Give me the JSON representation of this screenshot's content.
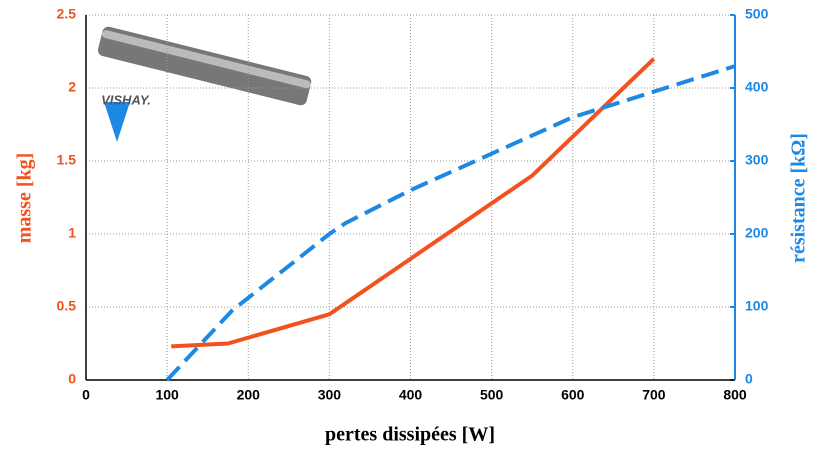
{
  "chart_data": {
    "type": "line",
    "xlabel": "pertes dissipées [W]",
    "ylabel": "masse [kg]",
    "y2label": "résistance [kΩ]",
    "logo_text": "VISHAY.",
    "xlim": [
      0,
      800
    ],
    "xticks": [
      0,
      100,
      200,
      300,
      400,
      500,
      600,
      700,
      800
    ],
    "ylim": [
      0,
      2.5
    ],
    "yticks": [
      0,
      0.5,
      1,
      1.5,
      2,
      2.5
    ],
    "y2lim": [
      0,
      500
    ],
    "y2ticks": [
      0,
      100,
      200,
      300,
      400,
      500
    ],
    "grid": true,
    "series": [
      {
        "name": "masse",
        "color": "#f4511e",
        "dash": false,
        "x": [
          105,
          175,
          300,
          550,
          700
        ],
        "values": [
          0.23,
          0.25,
          0.45,
          1.4,
          2.2
        ]
      },
      {
        "name": "résistance",
        "color": "#1e88e5",
        "dash": true,
        "axis": "y2",
        "x": [
          100,
          180,
          300,
          320,
          400,
          500,
          600,
          700,
          800
        ],
        "values": [
          0,
          95,
          200,
          215,
          260,
          310,
          360,
          395,
          430
        ]
      }
    ]
  }
}
